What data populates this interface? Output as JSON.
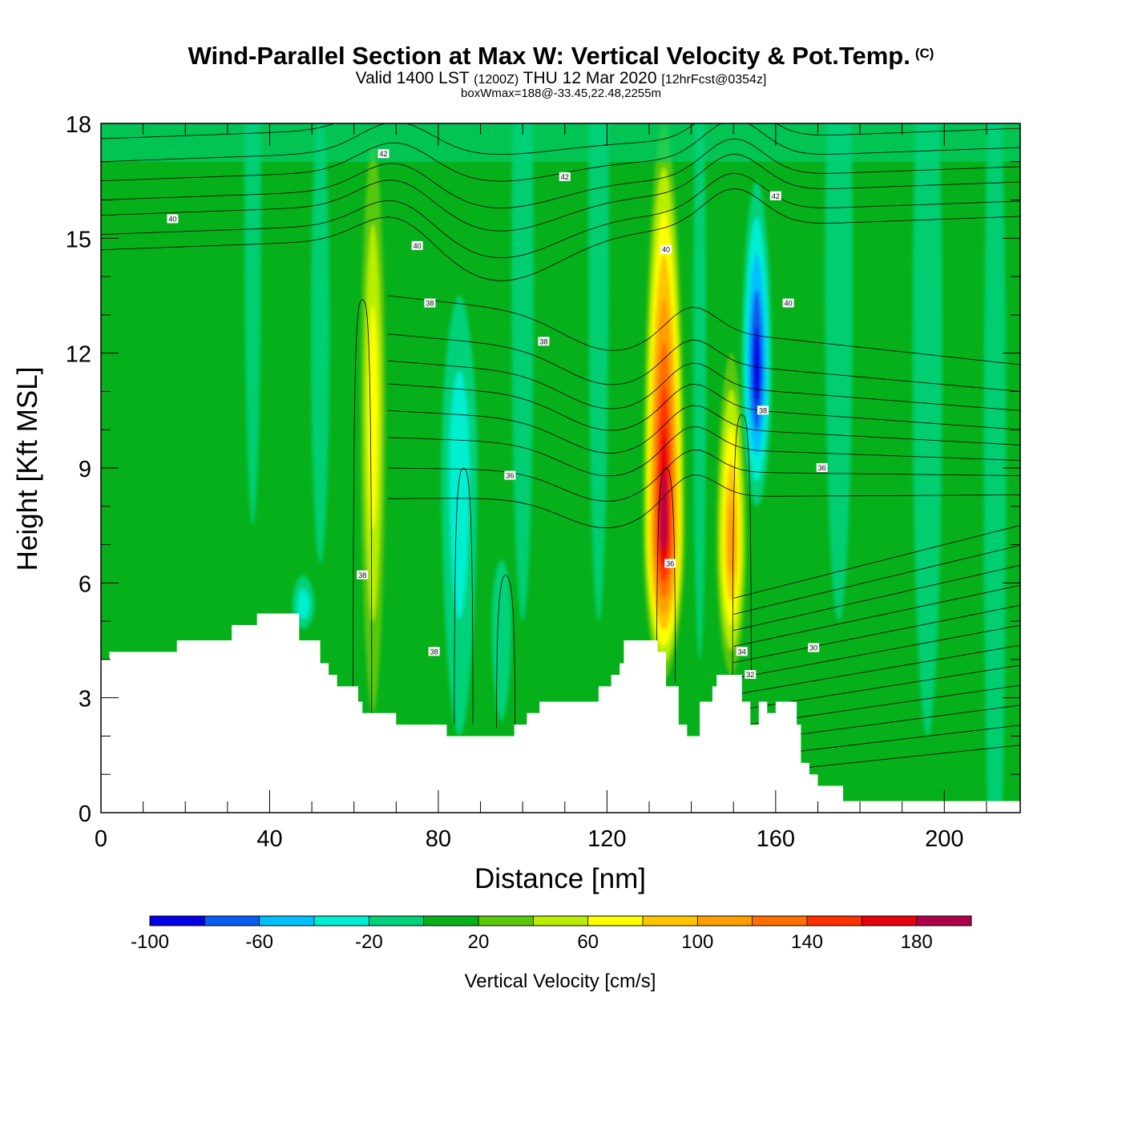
{
  "header": {
    "title": "Wind-Parallel Section at Max W: Vertical Velocity & Pot.Temp.",
    "copyright_mark": "(C)",
    "valid_prefix": "Valid 1400 LST",
    "valid_utc": "(1200Z)",
    "valid_date": "THU 12 Mar 2020",
    "forecast_tag": "[12hrFcst@0354z]",
    "box_wmax": "boxWmax=188@-33.45,22.48,2255m"
  },
  "colors": {
    "background_field": "#06b01a",
    "terrain": "#ffffff",
    "contour_line": "#000000",
    "bins": [
      "#0000e6",
      "#0b5cf0",
      "#00bfff",
      "#00efd0",
      "#00d27a",
      "#06b01a",
      "#58c808",
      "#b8ee00",
      "#ffff00",
      "#ffc400",
      "#ff9e00",
      "#ff6e00",
      "#ff3000",
      "#e8000c",
      "#b0004a"
    ]
  },
  "chart_data": {
    "type": "heatmap",
    "title": "Wind-Parallel Section at Max W: Vertical Velocity & Pot.Temp.",
    "xlabel": "Distance [nm]",
    "ylabel": "Height [Kft MSL]",
    "xlim": [
      0,
      218
    ],
    "ylim": [
      0,
      18
    ],
    "x_ticks": [
      0,
      40,
      80,
      120,
      160,
      200
    ],
    "y_ticks": [
      0,
      3,
      6,
      9,
      12,
      15,
      18
    ],
    "colorbar": {
      "title": "Vertical Velocity [cm/s]",
      "bounds": [
        -100,
        -80,
        -60,
        -40,
        -20,
        0,
        20,
        40,
        60,
        80,
        100,
        120,
        140,
        160,
        180,
        200
      ],
      "tick_labels": [
        -100,
        -60,
        -20,
        20,
        60,
        100,
        140,
        180
      ]
    },
    "terrain_kft": [
      [
        0,
        4.0
      ],
      [
        2,
        4.2
      ],
      [
        17,
        4.2
      ],
      [
        18,
        4.5
      ],
      [
        30,
        4.5
      ],
      [
        31,
        4.9
      ],
      [
        36,
        4.9
      ],
      [
        37,
        5.2
      ],
      [
        46,
        5.2
      ],
      [
        47,
        4.5
      ],
      [
        51,
        4.5
      ],
      [
        52,
        3.9
      ],
      [
        54,
        3.6
      ],
      [
        56,
        3.3
      ],
      [
        60,
        3.3
      ],
      [
        61,
        2.9
      ],
      [
        62,
        2.6
      ],
      [
        69,
        2.6
      ],
      [
        70,
        2.3
      ],
      [
        81,
        2.3
      ],
      [
        82,
        2.0
      ],
      [
        97,
        2.0
      ],
      [
        98,
        2.3
      ],
      [
        101,
        2.6
      ],
      [
        104,
        2.9
      ],
      [
        117,
        2.9
      ],
      [
        118,
        3.3
      ],
      [
        121,
        3.6
      ],
      [
        123,
        3.9
      ],
      [
        124,
        4.5
      ],
      [
        131,
        4.5
      ],
      [
        132,
        4.2
      ],
      [
        133,
        4.2
      ],
      [
        134,
        3.3
      ],
      [
        136,
        3.3
      ],
      [
        137,
        2.3
      ],
      [
        139,
        2.0
      ],
      [
        141,
        2.0
      ],
      [
        142,
        2.9
      ],
      [
        144,
        2.9
      ],
      [
        145,
        3.3
      ],
      [
        146,
        3.6
      ],
      [
        151,
        3.6
      ],
      [
        152,
        2.9
      ],
      [
        154,
        2.3
      ],
      [
        156,
        2.9
      ],
      [
        158,
        2.6
      ],
      [
        160,
        2.9
      ],
      [
        164,
        2.9
      ],
      [
        165,
        2.3
      ],
      [
        166,
        1.3
      ],
      [
        168,
        1.0
      ],
      [
        170,
        0.7
      ],
      [
        175,
        0.7
      ],
      [
        176,
        0.3
      ],
      [
        218,
        0.3
      ]
    ],
    "vertical_velocity_features": [
      {
        "name": "updraft",
        "x": 133.5,
        "z_range": [
          3.5,
          18
        ],
        "peak_cm_s": 188,
        "peak_height_kft": 7.4
      },
      {
        "name": "updraft",
        "x": 149.5,
        "z_range": [
          3.6,
          12
        ],
        "peak_cm_s": 110,
        "peak_height_kft": 7.0
      },
      {
        "name": "updraft",
        "x": 64.5,
        "z_range": [
          2.6,
          17.5
        ],
        "peak_cm_s": 75,
        "peak_height_kft": 10.5
      },
      {
        "name": "downdraft",
        "x": 155.5,
        "z_range": [
          8,
          16.5
        ],
        "peak_cm_s": -85,
        "peak_height_kft": 11.5
      },
      {
        "name": "downdraft",
        "x": 85,
        "z_range": [
          2.0,
          13.5
        ],
        "peak_cm_s": -30,
        "peak_height_kft": 9.0
      },
      {
        "name": "downdraft",
        "x": 48,
        "z_range": [
          4.8,
          6.2
        ],
        "peak_cm_s": -30,
        "peak_height_kft": 5.4
      },
      {
        "name": "downdraft",
        "x": 95,
        "z_range": [
          2.4,
          6.6
        ],
        "peak_cm_s": -15,
        "peak_height_kft": 5.0
      }
    ],
    "theta_contour_labels": [
      {
        "text": "42",
        "x": 67,
        "z": 17.2
      },
      {
        "text": "42",
        "x": 110,
        "z": 16.6
      },
      {
        "text": "42",
        "x": 160,
        "z": 16.1
      },
      {
        "text": "40",
        "x": 17,
        "z": 15.5
      },
      {
        "text": "40",
        "x": 75,
        "z": 14.8
      },
      {
        "text": "40",
        "x": 134,
        "z": 14.7
      },
      {
        "text": "40",
        "x": 163,
        "z": 13.3
      },
      {
        "text": "38",
        "x": 78,
        "z": 13.3
      },
      {
        "text": "38",
        "x": 105,
        "z": 12.3
      },
      {
        "text": "38",
        "x": 157,
        "z": 10.5
      },
      {
        "text": "38",
        "x": 62,
        "z": 6.2
      },
      {
        "text": "38",
        "x": 79,
        "z": 4.2
      },
      {
        "text": "36",
        "x": 97,
        "z": 8.8
      },
      {
        "text": "36",
        "x": 135,
        "z": 6.5
      },
      {
        "text": "36",
        "x": 171,
        "z": 9.0
      },
      {
        "text": "34",
        "x": 152,
        "z": 4.2
      },
      {
        "text": "32",
        "x": 154,
        "z": 3.6
      },
      {
        "text": "30",
        "x": 169,
        "z": 4.3
      }
    ]
  }
}
